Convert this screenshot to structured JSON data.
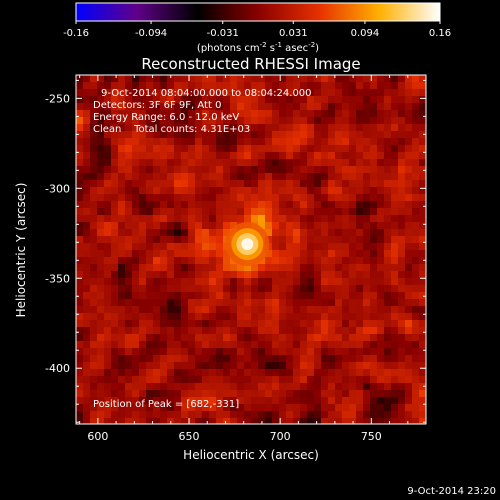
{
  "chart_data": {
    "type": "heatmap",
    "title": "Reconstructed RHESSI Image",
    "xlabel": "Heliocentric X (arcsec)",
    "ylabel": "Heliocentric Y (arcsec)",
    "xlim": [
      588,
      780
    ],
    "ylim": [
      -431,
      -237
    ],
    "xticks": [
      600,
      650,
      700,
      750
    ],
    "yticks": [
      -250,
      -300,
      -350,
      -400
    ],
    "colorbar": {
      "ticks": [
        "-0.16",
        "-0.094",
        "-0.031",
        "0.031",
        "0.094",
        "0.16"
      ],
      "tick_values": [
        -0.16,
        -0.094,
        -0.031,
        0.031,
        0.094,
        0.16
      ],
      "unit_prefix": "(photons cm",
      "unit_exp1": "-2",
      "unit_mid": " s",
      "unit_exp2": "-1",
      "unit_mid2": " asec",
      "unit_exp3": "-2",
      "unit_suffix": ")",
      "range": [
        -0.16,
        0.16
      ],
      "colors": [
        "#0000ff",
        "#600088",
        "#000000",
        "#8a0000",
        "#e63000",
        "#ffb000",
        "#ffffff"
      ]
    },
    "annotations": {
      "time_range": "9-Oct-2014 08:04:00.000 to 08:04:24.000",
      "detectors": "Detectors: 3F 6F 9F, Att 0",
      "energy": "Energy Range: 6.0 - 12.0 keV",
      "clean": "Clean    Total counts: 4.31E+03",
      "peak_text": "Position of Peak = [682,-331]"
    },
    "peak": {
      "x": 682,
      "y": -331,
      "value": 0.16
    },
    "background_noise": 0.05
  },
  "footer": {
    "timestamp": "9-Oct-2014 23:20"
  }
}
